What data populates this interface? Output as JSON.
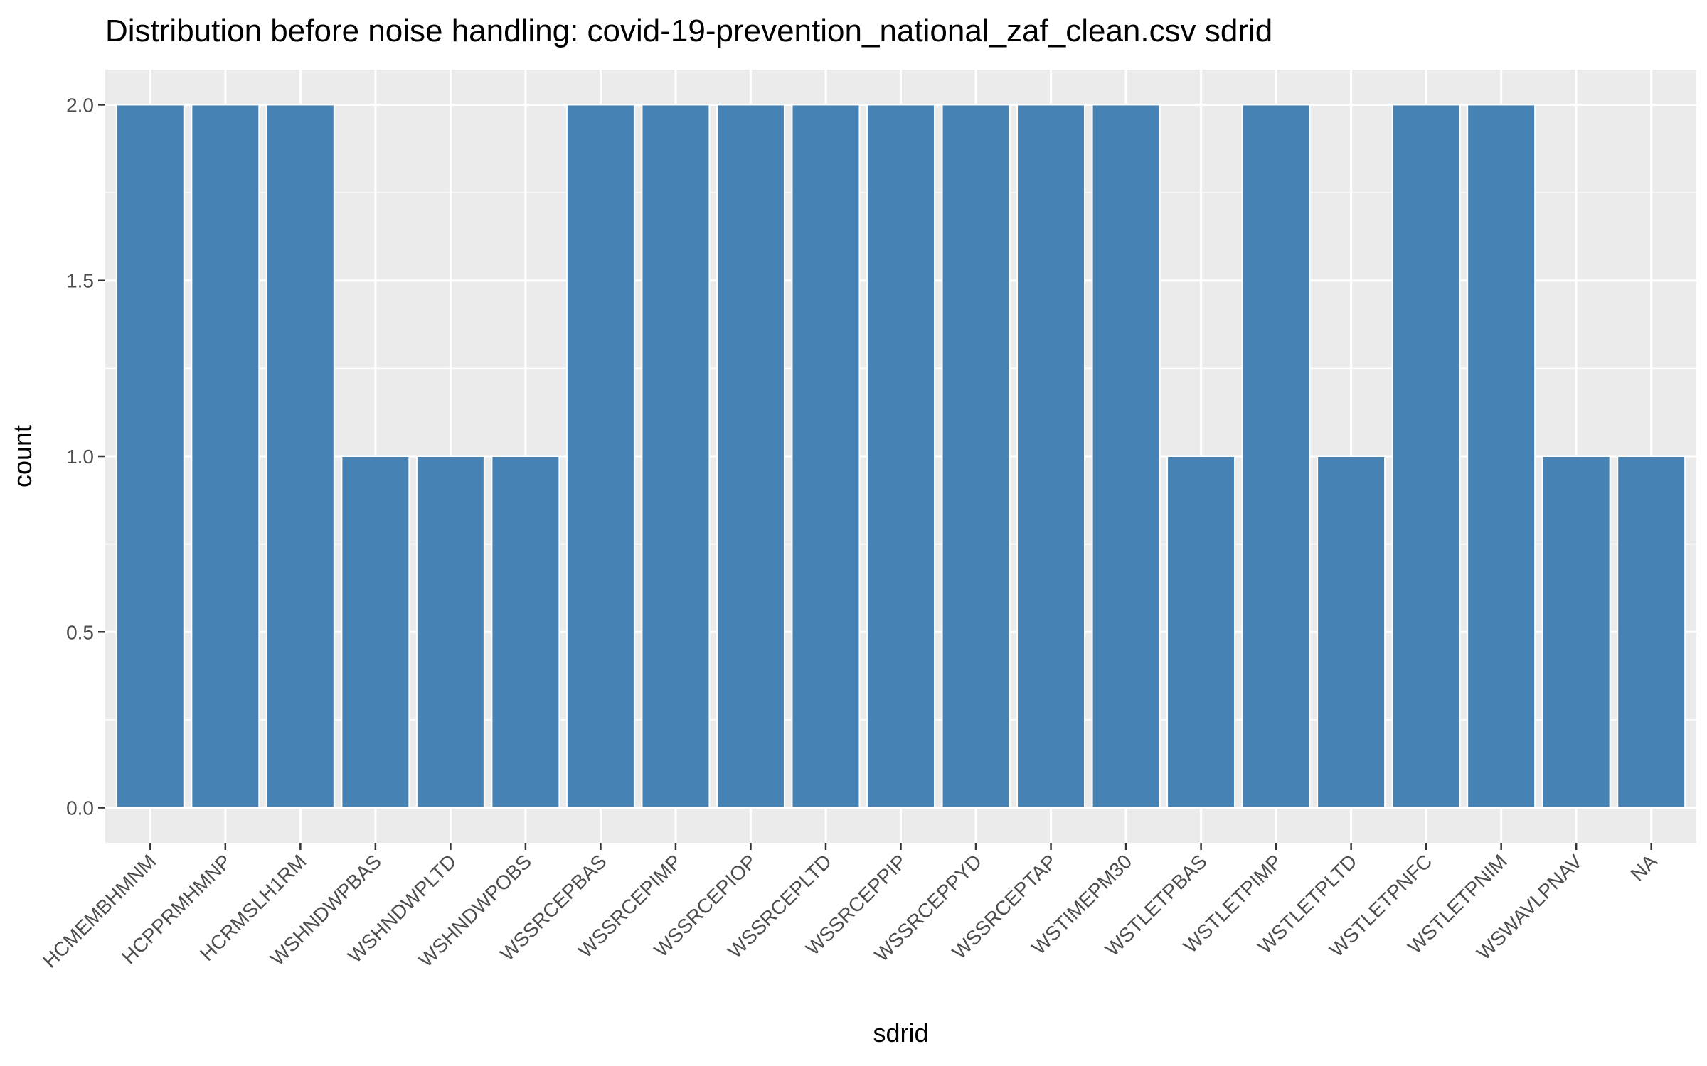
{
  "chart_data": {
    "type": "bar",
    "title": "Distribution before noise handling: covid-19-prevention_national_zaf_clean.csv sdrid",
    "xlabel": "sdrid",
    "ylabel": "count",
    "categories": [
      "HCMEMBHMNM",
      "HCPPRMHMNP",
      "HCRMSLH1RM",
      "WSHNDWPBAS",
      "WSHNDWPLTD",
      "WSHNDWPOBS",
      "WSSRCEPBAS",
      "WSSRCEPIMP",
      "WSSRCEPIOP",
      "WSSRCEPLTD",
      "WSSRCEPPIP",
      "WSSRCEPPYD",
      "WSSRCEPTAP",
      "WSTIMEPM30",
      "WSTLETPBAS",
      "WSTLETPIMP",
      "WSTLETPLTD",
      "WSTLETPNFC",
      "WSTLETPNIM",
      "WSWAVLPNAV",
      "NA"
    ],
    "values": [
      2,
      2,
      2,
      1,
      1,
      1,
      2,
      2,
      2,
      2,
      2,
      2,
      2,
      2,
      1,
      2,
      1,
      2,
      2,
      1,
      1
    ],
    "ylim": [
      0,
      2
    ],
    "yticks": [
      "0.0",
      "0.5",
      "1.0",
      "1.5",
      "2.0"
    ],
    "grid": true,
    "legend": "none",
    "bar_color": "#4682B4",
    "panel_color": "#EBEBEB"
  }
}
